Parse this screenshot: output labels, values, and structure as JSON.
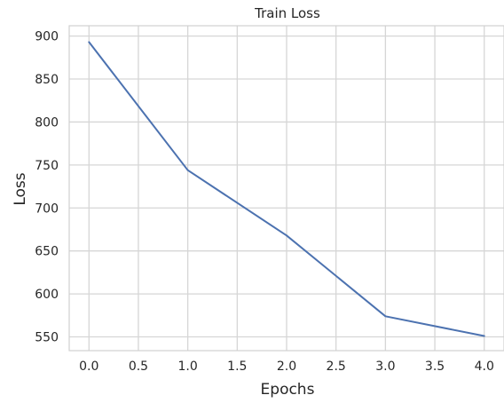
{
  "colors": {
    "series": "#4c72b0",
    "background": "#ffffff"
  },
  "chart_data": {
    "type": "line",
    "title": "Train Loss",
    "xlabel": "Epochs",
    "ylabel": "Loss",
    "grid": true,
    "legend": "none",
    "xlim": [
      -0.2,
      4.2
    ],
    "ylim": [
      534,
      912
    ],
    "xticks": [
      0.0,
      0.5,
      1.0,
      1.5,
      2.0,
      2.5,
      3.0,
      3.5,
      4.0
    ],
    "xtick_labels": [
      "0.0",
      "0.5",
      "1.0",
      "1.5",
      "2.0",
      "2.5",
      "3.0",
      "3.5",
      "4.0"
    ],
    "yticks": [
      550,
      600,
      650,
      700,
      750,
      800,
      850,
      900
    ],
    "ytick_labels": [
      "550",
      "600",
      "650",
      "700",
      "750",
      "800",
      "850",
      "900"
    ],
    "x": [
      0,
      1,
      2,
      3,
      4
    ],
    "series": [
      {
        "values": [
          893,
          744,
          668,
          574,
          551
        ]
      }
    ]
  }
}
